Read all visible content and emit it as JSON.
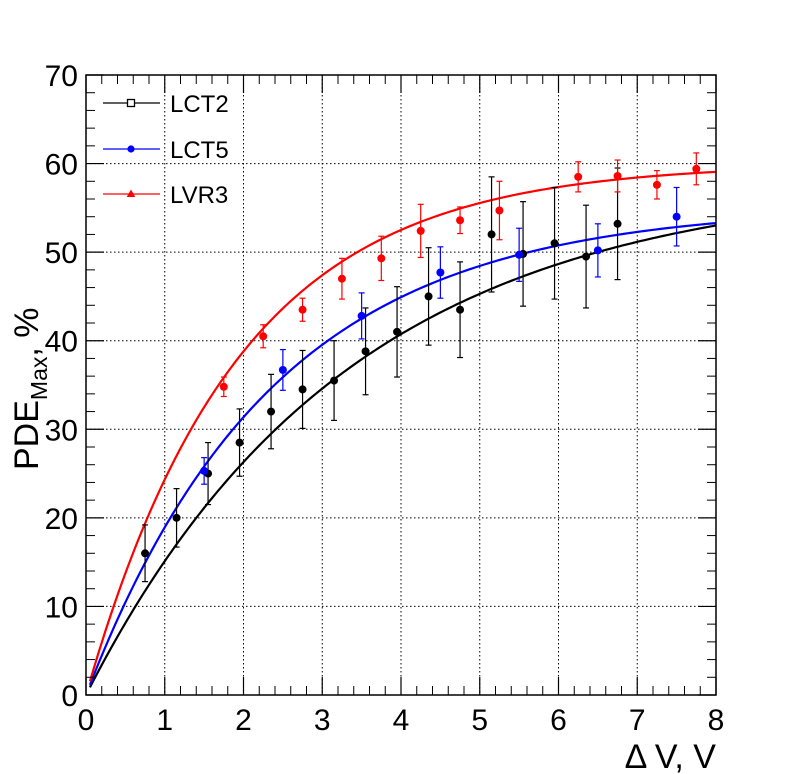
{
  "chart_data": {
    "type": "scatter",
    "xlabel": "Δ V, V",
    "ylabel": "PDE",
    "ylabel_sub": "Max",
    "ylabel_suffix": ", %",
    "xlim": [
      0,
      8
    ],
    "ylim": [
      0,
      70
    ],
    "x_ticks": [
      "0",
      "1",
      "2",
      "3",
      "4",
      "5",
      "6",
      "7",
      "8"
    ],
    "y_ticks": [
      "0",
      "10",
      "20",
      "30",
      "40",
      "50",
      "60",
      "70"
    ],
    "grid": true,
    "legend_position": "top-left",
    "series": [
      {
        "name": "LCT2",
        "color": "#000000",
        "marker": "open-square",
        "points": [
          {
            "x": 0.75,
            "y": 16.0,
            "err": 3.2
          },
          {
            "x": 1.15,
            "y": 20.0,
            "err": 3.3
          },
          {
            "x": 1.55,
            "y": 25.0,
            "err": 3.5
          },
          {
            "x": 1.95,
            "y": 28.5,
            "err": 3.8
          },
          {
            "x": 2.35,
            "y": 32.0,
            "err": 4.2
          },
          {
            "x": 2.75,
            "y": 34.5,
            "err": 4.4
          },
          {
            "x": 3.15,
            "y": 35.5,
            "err": 4.5
          },
          {
            "x": 3.55,
            "y": 38.8,
            "err": 4.9
          },
          {
            "x": 3.95,
            "y": 41.0,
            "err": 5.1
          },
          {
            "x": 4.35,
            "y": 45.0,
            "err": 5.5
          },
          {
            "x": 4.75,
            "y": 43.5,
            "err": 5.4
          },
          {
            "x": 5.15,
            "y": 52.0,
            "err": 6.5
          },
          {
            "x": 5.55,
            "y": 49.8,
            "err": 5.9
          },
          {
            "x": 5.95,
            "y": 51.0,
            "err": 6.3
          },
          {
            "x": 6.35,
            "y": 49.5,
            "err": 5.8
          },
          {
            "x": 6.75,
            "y": 53.2,
            "err": 6.3
          }
        ],
        "fit": {
          "a": 58.3,
          "k": 0.3
        }
      },
      {
        "name": "LCT5",
        "color": "#0000ff",
        "marker": "filled-circle",
        "points": [
          {
            "x": 1.5,
            "y": 25.3,
            "err": 1.5
          },
          {
            "x": 2.5,
            "y": 36.7,
            "err": 2.3
          },
          {
            "x": 3.5,
            "y": 42.8,
            "err": 2.6
          },
          {
            "x": 4.5,
            "y": 47.7,
            "err": 2.9
          },
          {
            "x": 5.5,
            "y": 49.7,
            "err": 3.0
          },
          {
            "x": 6.5,
            "y": 50.2,
            "err": 3.0
          },
          {
            "x": 7.5,
            "y": 54.0,
            "err": 3.3
          }
        ],
        "fit": {
          "a": 55.2,
          "k": 0.42
        }
      },
      {
        "name": "LVR3",
        "color": "#ff0000",
        "marker": "filled-triangle",
        "points": [
          {
            "x": 1.75,
            "y": 34.8,
            "err": 1.1
          },
          {
            "x": 2.25,
            "y": 40.5,
            "err": 1.3
          },
          {
            "x": 2.75,
            "y": 43.5,
            "err": 1.3
          },
          {
            "x": 3.25,
            "y": 47.0,
            "err": 2.3
          },
          {
            "x": 3.75,
            "y": 49.3,
            "err": 2.5
          },
          {
            "x": 4.25,
            "y": 52.4,
            "err": 3.0
          },
          {
            "x": 4.75,
            "y": 53.6,
            "err": 1.5
          },
          {
            "x": 5.25,
            "y": 54.7,
            "err": 3.3
          },
          {
            "x": 6.25,
            "y": 58.5,
            "err": 1.7
          },
          {
            "x": 6.75,
            "y": 58.6,
            "err": 1.8
          },
          {
            "x": 7.25,
            "y": 57.6,
            "err": 1.6
          },
          {
            "x": 7.75,
            "y": 59.4,
            "err": 1.8
          }
        ],
        "fit": {
          "a": 60.0,
          "k": 0.52
        }
      }
    ]
  }
}
